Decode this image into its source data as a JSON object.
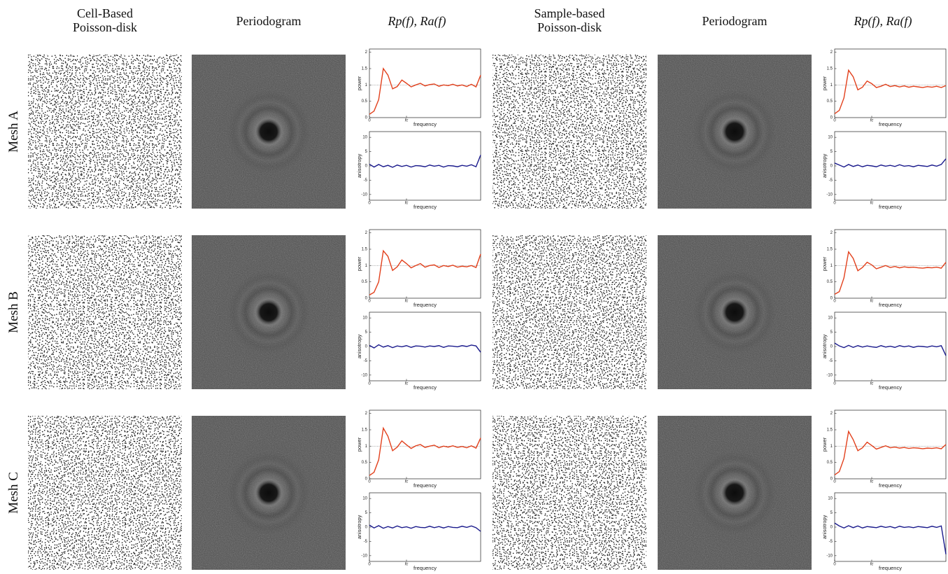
{
  "headers": {
    "columns": [
      {
        "lines": [
          "Cell-Based",
          "Poisson-disk"
        ]
      },
      {
        "lines": [
          "Periodogram"
        ]
      },
      {
        "lines": [
          "Rp(f), Ra(f)"
        ]
      },
      {
        "lines": [
          "Sample-based",
          "Poisson-disk"
        ]
      },
      {
        "lines": [
          "Periodogram"
        ]
      },
      {
        "lines": [
          "Rp(f), Ra(f)"
        ]
      }
    ]
  },
  "rows": [
    "Mesh A",
    "Mesh B",
    "Mesh C"
  ],
  "chart_data": [
    {
      "type": "line",
      "ylabel": "power",
      "xlabel": "frequency",
      "xlim": [
        0,
        3
      ],
      "xticks": [
        0,
        {
          "value": 1,
          "label": "fc"
        }
      ],
      "ylim": [
        0,
        2.1
      ],
      "yticks": [
        0,
        0.5,
        1,
        1.5,
        2
      ],
      "hline": 1,
      "color": "#e2401c",
      "x": [
        0,
        0.125,
        0.25,
        0.375,
        0.5,
        0.625,
        0.75,
        0.875,
        1,
        1.125,
        1.25,
        1.375,
        1.5,
        1.625,
        1.75,
        1.875,
        2,
        2.125,
        2.25,
        2.375,
        2.5,
        2.625,
        2.75,
        2.875,
        3
      ],
      "values": [
        0.1,
        0.2,
        0.55,
        1.5,
        1.3,
        0.88,
        0.95,
        1.15,
        1.05,
        0.94,
        1.0,
        1.05,
        0.97,
        1.01,
        1.03,
        0.96,
        1.0,
        0.98,
        1.02,
        0.97,
        1.0,
        0.95,
        1.02,
        0.94,
        1.3
      ]
    },
    {
      "type": "line",
      "ylabel": "anisotropy",
      "xlabel": "frequency",
      "xlim": [
        0,
        3
      ],
      "xticks": [
        0,
        {
          "value": 1,
          "label": "fc"
        }
      ],
      "ylim": [
        -12,
        12
      ],
      "yticks": [
        -10,
        -5,
        0,
        5,
        10
      ],
      "color": "#1a1a8c",
      "x": [
        0,
        0.125,
        0.25,
        0.375,
        0.5,
        0.625,
        0.75,
        0.875,
        1,
        1.125,
        1.25,
        1.375,
        1.5,
        1.625,
        1.75,
        1.875,
        2,
        2.125,
        2.25,
        2.375,
        2.5,
        2.625,
        2.75,
        2.875,
        3
      ],
      "values": [
        0.6,
        -0.4,
        0.5,
        -0.3,
        0.2,
        -0.5,
        0.3,
        -0.2,
        0.2,
        -0.4,
        0.1,
        0.0,
        -0.3,
        0.3,
        -0.1,
        0.2,
        -0.4,
        0.1,
        0.0,
        -0.3,
        0.2,
        -0.1,
        0.4,
        -0.3,
        3.8
      ]
    },
    {
      "type": "line",
      "ylabel": "power",
      "xlabel": "frequency",
      "xlim": [
        0,
        3
      ],
      "xticks": [
        0,
        {
          "value": 1,
          "label": "fc"
        }
      ],
      "ylim": [
        0,
        2.1
      ],
      "yticks": [
        0,
        0.5,
        1,
        1.5,
        2
      ],
      "hline": 1,
      "color": "#e2401c",
      "x": [
        0,
        0.125,
        0.25,
        0.375,
        0.5,
        0.625,
        0.75,
        0.875,
        1,
        1.125,
        1.25,
        1.375,
        1.5,
        1.625,
        1.75,
        1.875,
        2,
        2.125,
        2.25,
        2.375,
        2.5,
        2.625,
        2.75,
        2.875,
        3
      ],
      "values": [
        0.12,
        0.22,
        0.6,
        1.45,
        1.25,
        0.85,
        0.93,
        1.12,
        1.04,
        0.92,
        0.96,
        1.02,
        0.95,
        0.98,
        0.94,
        0.97,
        0.93,
        0.96,
        0.94,
        0.92,
        0.95,
        0.93,
        0.96,
        0.92,
        0.98
      ]
    },
    {
      "type": "line",
      "ylabel": "anisotropy",
      "xlabel": "frequency",
      "xlim": [
        0,
        3
      ],
      "xticks": [
        0,
        {
          "value": 1,
          "label": "fc"
        }
      ],
      "ylim": [
        -12,
        12
      ],
      "yticks": [
        -10,
        -5,
        0,
        5,
        10
      ],
      "color": "#1a1a8c",
      "x": [
        0,
        0.125,
        0.25,
        0.375,
        0.5,
        0.625,
        0.75,
        0.875,
        1,
        1.125,
        1.25,
        1.375,
        1.5,
        1.625,
        1.75,
        1.875,
        2,
        2.125,
        2.25,
        2.375,
        2.5,
        2.625,
        2.75,
        2.875,
        3
      ],
      "values": [
        1.0,
        0.3,
        -0.4,
        0.5,
        -0.2,
        0.3,
        -0.3,
        0.2,
        0.0,
        -0.3,
        0.3,
        -0.1,
        0.2,
        -0.2,
        0.4,
        -0.1,
        0.1,
        -0.3,
        0.2,
        0.0,
        -0.2,
        0.3,
        -0.1,
        0.5,
        2.5
      ]
    },
    {
      "type": "line",
      "ylabel": "power",
      "xlabel": "frequency",
      "xlim": [
        0,
        3
      ],
      "xticks": [
        0,
        {
          "value": 1,
          "label": "fc"
        }
      ],
      "ylim": [
        0,
        2.1
      ],
      "yticks": [
        0,
        0.5,
        1,
        1.5,
        2
      ],
      "hline": 1,
      "color": "#e2401c",
      "x": [
        0,
        0.125,
        0.25,
        0.375,
        0.5,
        0.625,
        0.75,
        0.875,
        1,
        1.125,
        1.25,
        1.375,
        1.5,
        1.625,
        1.75,
        1.875,
        2,
        2.125,
        2.25,
        2.375,
        2.5,
        2.625,
        2.75,
        2.875,
        3
      ],
      "values": [
        0.1,
        0.18,
        0.5,
        1.45,
        1.28,
        0.85,
        0.96,
        1.17,
        1.06,
        0.93,
        1.0,
        1.06,
        0.95,
        1.0,
        1.02,
        0.94,
        1.0,
        0.97,
        1.01,
        0.95,
        0.98,
        0.96,
        1.0,
        0.94,
        1.35
      ]
    },
    {
      "type": "line",
      "ylabel": "anisotropy",
      "xlabel": "frequency",
      "xlim": [
        0,
        3
      ],
      "xticks": [
        0,
        {
          "value": 1,
          "label": "fc"
        }
      ],
      "ylim": [
        -12,
        12
      ],
      "yticks": [
        -10,
        -5,
        0,
        5,
        10
      ],
      "color": "#1a1a8c",
      "x": [
        0,
        0.125,
        0.25,
        0.375,
        0.5,
        0.625,
        0.75,
        0.875,
        1,
        1.125,
        1.25,
        1.375,
        1.5,
        1.625,
        1.75,
        1.875,
        2,
        2.125,
        2.25,
        2.375,
        2.5,
        2.625,
        2.75,
        2.875,
        3
      ],
      "values": [
        0.4,
        -0.5,
        0.6,
        -0.2,
        0.3,
        -0.4,
        0.2,
        -0.1,
        0.3,
        -0.3,
        0.2,
        0.1,
        -0.2,
        0.2,
        0.0,
        0.3,
        -0.3,
        0.2,
        0.1,
        -0.1,
        0.3,
        0.0,
        0.5,
        0.2,
        -2.0
      ]
    },
    {
      "type": "line",
      "ylabel": "power",
      "xlabel": "frequency",
      "xlim": [
        0,
        3
      ],
      "xticks": [
        0,
        {
          "value": 1,
          "label": "fc"
        }
      ],
      "ylim": [
        0,
        2.1
      ],
      "yticks": [
        0,
        0.5,
        1,
        1.5,
        2
      ],
      "hline": 1,
      "color": "#e2401c",
      "x": [
        0,
        0.125,
        0.25,
        0.375,
        0.5,
        0.625,
        0.75,
        0.875,
        1,
        1.125,
        1.25,
        1.375,
        1.5,
        1.625,
        1.75,
        1.875,
        2,
        2.125,
        2.25,
        2.375,
        2.5,
        2.625,
        2.75,
        2.875,
        3
      ],
      "values": [
        0.12,
        0.2,
        0.62,
        1.42,
        1.22,
        0.84,
        0.94,
        1.1,
        1.02,
        0.9,
        0.95,
        1.0,
        0.94,
        0.97,
        0.93,
        0.96,
        0.94,
        0.95,
        0.93,
        0.92,
        0.94,
        0.93,
        0.95,
        0.92,
        1.1
      ]
    },
    {
      "type": "line",
      "ylabel": "anisotropy",
      "xlabel": "frequency",
      "xlim": [
        0,
        3
      ],
      "xticks": [
        0,
        {
          "value": 1,
          "label": "fc"
        }
      ],
      "ylim": [
        -12,
        12
      ],
      "yticks": [
        -10,
        -5,
        0,
        5,
        10
      ],
      "color": "#1a1a8c",
      "x": [
        0,
        0.125,
        0.25,
        0.375,
        0.5,
        0.625,
        0.75,
        0.875,
        1,
        1.125,
        1.25,
        1.375,
        1.5,
        1.625,
        1.75,
        1.875,
        2,
        2.125,
        2.25,
        2.375,
        2.5,
        2.625,
        2.75,
        2.875,
        3
      ],
      "values": [
        1.2,
        0.2,
        -0.4,
        0.4,
        -0.3,
        0.3,
        -0.2,
        0.2,
        -0.1,
        -0.3,
        0.3,
        -0.2,
        0.1,
        -0.3,
        0.3,
        -0.1,
        0.2,
        -0.3,
        0.1,
        0.0,
        -0.2,
        0.2,
        -0.1,
        0.3,
        -3.2
      ]
    },
    {
      "type": "line",
      "ylabel": "power",
      "xlabel": "frequency",
      "xlim": [
        0,
        3
      ],
      "xticks": [
        0,
        {
          "value": 1,
          "label": "fc"
        }
      ],
      "ylim": [
        0,
        2.1
      ],
      "yticks": [
        0,
        0.5,
        1,
        1.5,
        2
      ],
      "hline": 1,
      "color": "#e2401c",
      "x": [
        0,
        0.125,
        0.25,
        0.375,
        0.5,
        0.625,
        0.75,
        0.875,
        1,
        1.125,
        1.25,
        1.375,
        1.5,
        1.625,
        1.75,
        1.875,
        2,
        2.125,
        2.25,
        2.375,
        2.5,
        2.625,
        2.75,
        2.875,
        3
      ],
      "values": [
        0.1,
        0.2,
        0.58,
        1.55,
        1.3,
        0.86,
        0.97,
        1.16,
        1.04,
        0.93,
        1.01,
        1.05,
        0.96,
        1.0,
        1.03,
        0.95,
        1.0,
        0.97,
        1.01,
        0.96,
        0.99,
        0.95,
        1.01,
        0.94,
        1.25
      ]
    },
    {
      "type": "line",
      "ylabel": "anisotropy",
      "xlabel": "frequency",
      "xlim": [
        0,
        3
      ],
      "xticks": [
        0,
        {
          "value": 1,
          "label": "fc"
        }
      ],
      "ylim": [
        -12,
        12
      ],
      "yticks": [
        -10,
        -5,
        0,
        5,
        10
      ],
      "color": "#1a1a8c",
      "x": [
        0,
        0.125,
        0.25,
        0.375,
        0.5,
        0.625,
        0.75,
        0.875,
        1,
        1.125,
        1.25,
        1.375,
        1.5,
        1.625,
        1.75,
        1.875,
        2,
        2.125,
        2.25,
        2.375,
        2.5,
        2.625,
        2.75,
        2.875,
        3
      ],
      "values": [
        0.7,
        -0.3,
        0.5,
        -0.4,
        0.2,
        -0.3,
        0.4,
        -0.2,
        0.1,
        -0.4,
        0.2,
        -0.1,
        -0.2,
        0.3,
        -0.2,
        0.2,
        -0.3,
        0.2,
        -0.1,
        -0.2,
        0.3,
        -0.1,
        0.4,
        -0.2,
        -1.5
      ]
    },
    {
      "type": "line",
      "ylabel": "power",
      "xlabel": "frequency",
      "xlim": [
        0,
        3
      ],
      "xticks": [
        0,
        {
          "value": 1,
          "label": "fc"
        }
      ],
      "ylim": [
        0,
        2.1
      ],
      "yticks": [
        0,
        0.5,
        1,
        1.5,
        2
      ],
      "hline": 1,
      "color": "#e2401c",
      "x": [
        0,
        0.125,
        0.25,
        0.375,
        0.5,
        0.625,
        0.75,
        0.875,
        1,
        1.125,
        1.25,
        1.375,
        1.5,
        1.625,
        1.75,
        1.875,
        2,
        2.125,
        2.25,
        2.375,
        2.5,
        2.625,
        2.75,
        2.875,
        3
      ],
      "values": [
        0.12,
        0.22,
        0.62,
        1.45,
        1.2,
        0.86,
        0.95,
        1.12,
        1.02,
        0.91,
        0.96,
        1.01,
        0.95,
        0.97,
        0.94,
        0.96,
        0.93,
        0.95,
        0.94,
        0.92,
        0.94,
        0.93,
        0.95,
        0.92,
        1.05
      ]
    },
    {
      "type": "line",
      "ylabel": "anisotropy",
      "xlabel": "frequency",
      "xlim": [
        0,
        3
      ],
      "xticks": [
        0,
        {
          "value": 1,
          "label": "fc"
        }
      ],
      "ylim": [
        -12,
        12
      ],
      "yticks": [
        -10,
        -5,
        0,
        5,
        10
      ],
      "color": "#1a1a8c",
      "x": [
        0,
        0.125,
        0.25,
        0.375,
        0.5,
        0.625,
        0.75,
        0.875,
        1,
        1.125,
        1.25,
        1.375,
        1.5,
        1.625,
        1.75,
        1.875,
        2,
        2.125,
        2.25,
        2.375,
        2.5,
        2.625,
        2.75,
        2.875,
        3
      ],
      "values": [
        1.4,
        0.4,
        -0.3,
        0.5,
        -0.2,
        0.4,
        -0.3,
        0.2,
        0.0,
        -0.2,
        0.3,
        -0.1,
        0.2,
        -0.3,
        0.3,
        -0.1,
        0.1,
        -0.2,
        0.2,
        0.0,
        -0.2,
        0.3,
        -0.1,
        0.4,
        -9.5
      ]
    }
  ]
}
